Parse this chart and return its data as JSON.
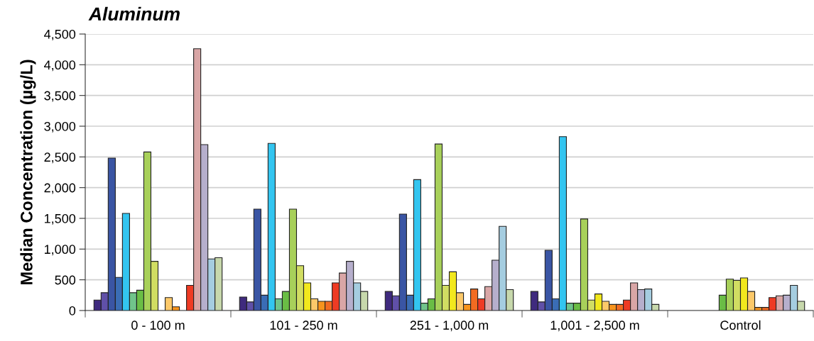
{
  "chart_data": {
    "type": "bar",
    "title": "Aluminum",
    "ylabel": "Median Concentration (µg/L)",
    "categories": [
      "0 - 100 m",
      "101 - 250 m",
      "251 - 1,000 m",
      "1,001 - 2,500 m",
      "Control"
    ],
    "ylim": [
      0,
      4500
    ],
    "yticks": [
      {
        "value": 0,
        "label": "0"
      },
      {
        "value": 500,
        "label": "500"
      },
      {
        "value": 1000,
        "label": "1,000"
      },
      {
        "value": 1500,
        "label": "1,500"
      },
      {
        "value": 2000,
        "label": "2,000"
      },
      {
        "value": 2500,
        "label": "2,500"
      },
      {
        "value": 3000,
        "label": "3,000"
      },
      {
        "value": 3500,
        "label": "3,500"
      },
      {
        "value": 4000,
        "label": "4,000"
      },
      {
        "value": 4500,
        "label": "4,500"
      }
    ],
    "grid": "y",
    "series": [
      {
        "color": "#3f2a7e",
        "values": [
          170,
          220,
          310,
          310,
          null
        ]
      },
      {
        "color": "#6050a8",
        "values": [
          290,
          140,
          240,
          140,
          null
        ]
      },
      {
        "color": "#3a55a4",
        "values": [
          2480,
          1650,
          1570,
          980,
          null
        ]
      },
      {
        "color": "#3a6db5",
        "values": [
          540,
          250,
          250,
          190,
          null
        ]
      },
      {
        "color": "#33c5f0",
        "values": [
          1580,
          2720,
          2130,
          2830,
          null
        ]
      },
      {
        "color": "#70c48b",
        "values": [
          290,
          190,
          120,
          120,
          null
        ]
      },
      {
        "color": "#6abd45",
        "values": [
          330,
          310,
          190,
          120,
          250
        ]
      },
      {
        "color": "#a8d05a",
        "values": [
          2580,
          1650,
          2710,
          1490,
          510
        ]
      },
      {
        "color": "#d1dd62",
        "values": [
          800,
          730,
          410,
          170,
          490
        ]
      },
      {
        "color": "#f2e81d",
        "values": [
          null,
          450,
          630,
          270,
          530
        ]
      },
      {
        "color": "#fcc96a",
        "values": [
          210,
          190,
          290,
          150,
          310
        ]
      },
      {
        "color": "#f7941d",
        "values": [
          60,
          150,
          100,
          100,
          50
        ]
      },
      {
        "color": "#f26b21",
        "values": [
          null,
          150,
          350,
          100,
          50
        ]
      },
      {
        "color": "#ee3b24",
        "values": [
          410,
          450,
          190,
          170,
          210
        ]
      },
      {
        "color": "#d9a6a6",
        "values": [
          4260,
          610,
          390,
          450,
          240
        ]
      },
      {
        "color": "#b6afcc",
        "values": [
          2700,
          800,
          820,
          340,
          250
        ]
      },
      {
        "color": "#a5cde0",
        "values": [
          840,
          450,
          1370,
          350,
          410
        ]
      },
      {
        "color": "#c7d8ac",
        "values": [
          860,
          310,
          340,
          100,
          150
        ]
      }
    ]
  }
}
